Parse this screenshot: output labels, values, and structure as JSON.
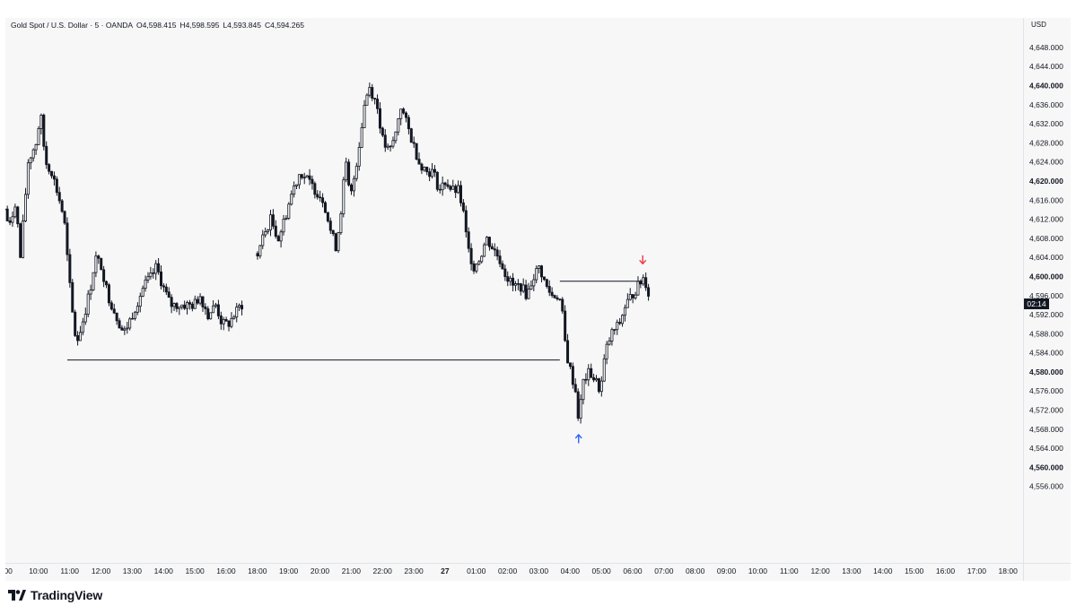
{
  "header": {
    "symbol": "Gold Spot / U.S. Dollar · 5 · OANDA",
    "open": "O4,598.415",
    "high": "H4,598.595",
    "low": "L4,593.845",
    "close": "C4,594.265",
    "currency": "USD"
  },
  "branding": {
    "name": "TradingView"
  },
  "countdown": "02:14",
  "colors": {
    "candle": "#131722",
    "up_arrow": "#2962ff",
    "down_arrow": "#f23645",
    "background": "#f7f7f7"
  },
  "chart_data": {
    "type": "candlestick",
    "ylim": [
      4552,
      4654
    ],
    "y_ticks": [
      {
        "value": 4648,
        "label": "4,648.000",
        "bold": false
      },
      {
        "value": 4644,
        "label": "4,644.000",
        "bold": false
      },
      {
        "value": 4640,
        "label": "4,640.000",
        "bold": true
      },
      {
        "value": 4636,
        "label": "4,636.000",
        "bold": false
      },
      {
        "value": 4632,
        "label": "4,632.000",
        "bold": false
      },
      {
        "value": 4628,
        "label": "4,628.000",
        "bold": false
      },
      {
        "value": 4624,
        "label": "4,624.000",
        "bold": false
      },
      {
        "value": 4620,
        "label": "4,620.000",
        "bold": true
      },
      {
        "value": 4616,
        "label": "4,616.000",
        "bold": false
      },
      {
        "value": 4612,
        "label": "4,612.000",
        "bold": false
      },
      {
        "value": 4608,
        "label": "4,608.000",
        "bold": false
      },
      {
        "value": 4604,
        "label": "4,604.000",
        "bold": false
      },
      {
        "value": 4600,
        "label": "4,600.000",
        "bold": true
      },
      {
        "value": 4596,
        "label": "4,596.000",
        "bold": false
      },
      {
        "value": 4592,
        "label": "4,592.000",
        "bold": false
      },
      {
        "value": 4588,
        "label": "4,588.000",
        "bold": false
      },
      {
        "value": 4584,
        "label": "4,584.000",
        "bold": false
      },
      {
        "value": 4580,
        "label": "4,580.000",
        "bold": true
      },
      {
        "value": 4576,
        "label": "4,576.000",
        "bold": false
      },
      {
        "value": 4572,
        "label": "4,572.000",
        "bold": false
      },
      {
        "value": 4568,
        "label": "4,568.000",
        "bold": false
      },
      {
        "value": 4564,
        "label": "4,564.000",
        "bold": false
      },
      {
        "value": 4560,
        "label": "4,560.000",
        "bold": true
      },
      {
        "value": 4556,
        "label": "4,556.000",
        "bold": false
      }
    ],
    "x_ticks": [
      {
        "hour": 9,
        "label": ":00",
        "bold": false
      },
      {
        "hour": 10,
        "label": "10:00",
        "bold": false
      },
      {
        "hour": 11,
        "label": "11:00",
        "bold": false
      },
      {
        "hour": 12,
        "label": "12:00",
        "bold": false
      },
      {
        "hour": 13,
        "label": "13:00",
        "bold": false
      },
      {
        "hour": 14,
        "label": "14:00",
        "bold": false
      },
      {
        "hour": 15,
        "label": "15:00",
        "bold": false
      },
      {
        "hour": 16,
        "label": "16:00",
        "bold": false
      },
      {
        "hour": 17,
        "label": "18:00",
        "bold": false
      },
      {
        "hour": 18,
        "label": "19:00",
        "bold": false
      },
      {
        "hour": 19,
        "label": "20:00",
        "bold": false
      },
      {
        "hour": 20,
        "label": "21:00",
        "bold": false
      },
      {
        "hour": 21,
        "label": "22:00",
        "bold": false
      },
      {
        "hour": 22,
        "label": "23:00",
        "bold": false
      },
      {
        "hour": 23,
        "label": "27",
        "bold": true
      },
      {
        "hour": 24,
        "label": "01:00",
        "bold": false
      },
      {
        "hour": 25,
        "label": "02:00",
        "bold": false
      },
      {
        "hour": 26,
        "label": "03:00",
        "bold": false
      },
      {
        "hour": 27,
        "label": "04:00",
        "bold": false
      },
      {
        "hour": 28,
        "label": "05:00",
        "bold": false
      },
      {
        "hour": 29,
        "label": "06:00",
        "bold": false
      },
      {
        "hour": 30,
        "label": "07:00",
        "bold": false
      },
      {
        "hour": 31,
        "label": "08:00",
        "bold": false
      },
      {
        "hour": 32,
        "label": "09:00",
        "bold": false
      },
      {
        "hour": 33,
        "label": "10:00",
        "bold": false
      },
      {
        "hour": 34,
        "label": "11:00",
        "bold": false
      },
      {
        "hour": 35,
        "label": "12:00",
        "bold": false
      },
      {
        "hour": 36,
        "label": "13:00",
        "bold": false
      },
      {
        "hour": 37,
        "label": "14:00",
        "bold": false
      },
      {
        "hour": 38,
        "label": "15:00",
        "bold": false
      },
      {
        "hour": 39,
        "label": "16:00",
        "bold": false
      },
      {
        "hour": 40,
        "label": "17:00",
        "bold": false
      },
      {
        "hour": 41,
        "label": "18:00",
        "bold": false
      }
    ],
    "price_path": [
      [
        8.95,
        4614
      ],
      [
        9.1,
        4610
      ],
      [
        9.3,
        4616
      ],
      [
        9.45,
        4604
      ],
      [
        9.7,
        4624
      ],
      [
        9.95,
        4628
      ],
      [
        10.1,
        4634
      ],
      [
        10.25,
        4624
      ],
      [
        10.45,
        4622
      ],
      [
        10.7,
        4616
      ],
      [
        10.85,
        4612
      ],
      [
        11.0,
        4600
      ],
      [
        11.15,
        4590
      ],
      [
        11.25,
        4586
      ],
      [
        11.5,
        4592
      ],
      [
        11.7,
        4598
      ],
      [
        11.85,
        4604
      ],
      [
        12.05,
        4602
      ],
      [
        12.25,
        4596
      ],
      [
        12.5,
        4592
      ],
      [
        12.75,
        4588
      ],
      [
        12.9,
        4590
      ],
      [
        13.15,
        4594
      ],
      [
        13.4,
        4598
      ],
      [
        13.65,
        4600
      ],
      [
        13.8,
        4602
      ],
      [
        14.0,
        4598
      ],
      [
        14.25,
        4594
      ],
      [
        14.5,
        4594
      ],
      [
        14.75,
        4594
      ],
      [
        15.0,
        4594
      ],
      [
        15.2,
        4596
      ],
      [
        15.45,
        4592
      ],
      [
        15.7,
        4594
      ],
      [
        15.9,
        4590
      ],
      [
        16.1,
        4590
      ],
      [
        16.3,
        4592
      ],
      [
        16.5,
        4594
      ],
      [
        16.6,
        4594
      ],
      [
        17.0,
        4604
      ],
      [
        17.2,
        4608
      ],
      [
        17.45,
        4612
      ],
      [
        17.7,
        4608
      ],
      [
        17.9,
        4612
      ],
      [
        18.15,
        4618
      ],
      [
        18.4,
        4622
      ],
      [
        18.65,
        4620
      ],
      [
        18.9,
        4618
      ],
      [
        19.15,
        4616
      ],
      [
        19.35,
        4610
      ],
      [
        19.55,
        4606
      ],
      [
        19.7,
        4614
      ],
      [
        19.85,
        4624
      ],
      [
        20.0,
        4616
      ],
      [
        20.25,
        4626
      ],
      [
        20.45,
        4636
      ],
      [
        20.6,
        4640
      ],
      [
        20.85,
        4636
      ],
      [
        21.05,
        4628
      ],
      [
        21.25,
        4626
      ],
      [
        21.45,
        4630
      ],
      [
        21.6,
        4636
      ],
      [
        21.8,
        4632
      ],
      [
        22.0,
        4628
      ],
      [
        22.2,
        4624
      ],
      [
        22.45,
        4622
      ],
      [
        22.65,
        4622
      ],
      [
        22.85,
        4618
      ],
      [
        23.05,
        4620
      ],
      [
        23.25,
        4618
      ],
      [
        23.45,
        4618
      ],
      [
        23.6,
        4614
      ],
      [
        23.75,
        4606
      ],
      [
        23.95,
        4602
      ],
      [
        24.15,
        4604
      ],
      [
        24.35,
        4608
      ],
      [
        24.55,
        4606
      ],
      [
        24.75,
        4604
      ],
      [
        25.0,
        4600
      ],
      [
        25.2,
        4598
      ],
      [
        25.45,
        4598
      ],
      [
        25.65,
        4596
      ],
      [
        25.85,
        4600
      ],
      [
        26.05,
        4602
      ],
      [
        26.25,
        4598
      ],
      [
        26.45,
        4596
      ],
      [
        26.65,
        4596
      ],
      [
        26.75,
        4594
      ],
      [
        26.9,
        4584
      ],
      [
        27.05,
        4580
      ],
      [
        27.2,
        4576
      ],
      [
        27.3,
        4570
      ],
      [
        27.45,
        4578
      ],
      [
        27.65,
        4580
      ],
      [
        27.85,
        4578
      ],
      [
        28.0,
        4576
      ],
      [
        28.15,
        4584
      ],
      [
        28.35,
        4588
      ],
      [
        28.6,
        4590
      ],
      [
        28.8,
        4594
      ],
      [
        29.0,
        4596
      ],
      [
        29.2,
        4598
      ],
      [
        29.4,
        4600
      ],
      [
        29.55,
        4596
      ]
    ],
    "horizontal_lines": [
      {
        "price": 4582.5,
        "x_start": 10.95,
        "x_end": 26.7
      },
      {
        "price": 4599,
        "x_start": 26.7,
        "x_end": 29.35
      }
    ],
    "markers": [
      {
        "kind": "up-arrow",
        "x": 27.3,
        "price": 4566
      },
      {
        "kind": "down-arrow",
        "x": 29.35,
        "price": 4603.5
      }
    ],
    "current_price_label_value": 4594.265
  }
}
